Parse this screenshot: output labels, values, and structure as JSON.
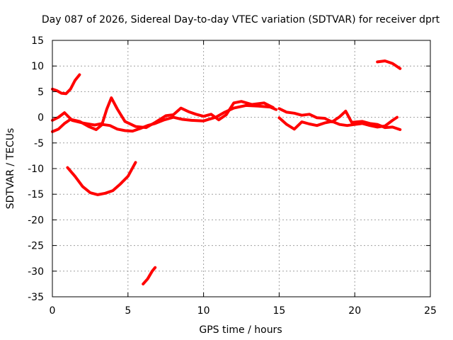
{
  "chart_data": {
    "type": "line",
    "title": "Day 087 of 2026, Sidereal Day-to-day VTEC variation (SDTVAR) for receiver dprt",
    "xlabel": "GPS time / hours",
    "ylabel": "SDTVAR / TECUs",
    "xlim": [
      0,
      25
    ],
    "ylim": [
      -35,
      15
    ],
    "xticks": [
      0,
      5,
      10,
      15,
      20,
      25
    ],
    "yticks": [
      15,
      10,
      5,
      0,
      -5,
      -10,
      -15,
      -20,
      -25,
      -30,
      -35
    ],
    "grid": true,
    "legend": "none",
    "color": "#ff0000",
    "series": [
      {
        "name": "arc-upper-left",
        "points": [
          [
            0,
            5.5
          ],
          [
            0.3,
            5.2
          ],
          [
            0.6,
            4.7
          ],
          [
            0.9,
            4.6
          ],
          [
            1.2,
            5.5
          ],
          [
            1.5,
            7.2
          ],
          [
            1.8,
            8.3
          ]
        ]
      },
      {
        "name": "arc-u-shape",
        "points": [
          [
            1,
            -9.8
          ],
          [
            1.5,
            -11.5
          ],
          [
            2,
            -13.5
          ],
          [
            2.5,
            -14.7
          ],
          [
            3,
            -15.1
          ],
          [
            3.5,
            -14.8
          ],
          [
            4,
            -14.3
          ],
          [
            4.5,
            -13
          ],
          [
            5,
            -11.5
          ],
          [
            5.5,
            -8.8
          ]
        ]
      },
      {
        "name": "arc-low-short",
        "points": [
          [
            6,
            -32.5
          ],
          [
            6.3,
            -31.5
          ],
          [
            6.6,
            -30
          ],
          [
            6.8,
            -29.3
          ]
        ]
      },
      {
        "name": "arc-high-right",
        "points": [
          [
            21.5,
            10.8
          ],
          [
            22,
            11
          ],
          [
            22.5,
            10.5
          ],
          [
            23,
            9.5
          ]
        ]
      },
      {
        "name": "arc-zero-1",
        "points": [
          [
            0,
            -2.8
          ],
          [
            0.4,
            -2.3
          ],
          [
            0.8,
            -1.2
          ],
          [
            1.2,
            -0.4
          ],
          [
            1.8,
            -0.8
          ],
          [
            2.4,
            -1.8
          ],
          [
            2.9,
            -2.4
          ],
          [
            3.3,
            -1.4
          ],
          [
            3.8,
            -1.6
          ],
          [
            4.3,
            -2.3
          ],
          [
            4.8,
            -2.6
          ],
          [
            5.3,
            -2.7
          ],
          [
            5.8,
            -2.2
          ],
          [
            6.3,
            -1.6
          ],
          [
            6.8,
            -1.2
          ],
          [
            7.4,
            -0.5
          ],
          [
            8,
            0
          ],
          [
            8.6,
            -0.4
          ],
          [
            9.2,
            -0.6
          ],
          [
            10,
            -0.7
          ],
          [
            10.8,
            0
          ],
          [
            11.4,
            1
          ],
          [
            12,
            1.8
          ],
          [
            12.8,
            2.3
          ],
          [
            13.6,
            2.2
          ],
          [
            14.4,
            2
          ],
          [
            14.8,
            1.5
          ]
        ]
      },
      {
        "name": "arc-zero-2",
        "points": [
          [
            0,
            -0.6
          ],
          [
            0.4,
            0
          ],
          [
            0.8,
            0.9
          ],
          [
            1.3,
            -0.6
          ],
          [
            2,
            -1.1
          ],
          [
            2.8,
            -1.5
          ],
          [
            3.3,
            -1.2
          ],
          [
            3.6,
            1.6
          ],
          [
            3.9,
            3.8
          ],
          [
            4.3,
            1.6
          ],
          [
            4.8,
            -0.8
          ],
          [
            5.5,
            -1.8
          ],
          [
            6.2,
            -2
          ],
          [
            6.8,
            -1
          ],
          [
            7.5,
            0.3
          ],
          [
            8,
            0.5
          ],
          [
            8.5,
            1.8
          ],
          [
            9,
            1.1
          ],
          [
            9.5,
            0.6
          ],
          [
            10,
            0.2
          ],
          [
            10.5,
            0.6
          ],
          [
            11,
            -0.5
          ],
          [
            11.5,
            0.5
          ],
          [
            12,
            2.8
          ],
          [
            12.5,
            3.1
          ],
          [
            13.2,
            2.5
          ],
          [
            14,
            2.8
          ],
          [
            14.6,
            1.9
          ]
        ]
      },
      {
        "name": "arc-zero-3",
        "points": [
          [
            15,
            1.7
          ],
          [
            15.5,
            1
          ],
          [
            16,
            0.8
          ],
          [
            16.5,
            0.4
          ],
          [
            17,
            0.6
          ],
          [
            17.5,
            -0.1
          ],
          [
            18,
            -0.2
          ],
          [
            18.5,
            -0.9
          ],
          [
            19,
            0.1
          ],
          [
            19.4,
            1.2
          ],
          [
            19.8,
            -1
          ],
          [
            20.5,
            -0.8
          ],
          [
            21,
            -1.2
          ],
          [
            21.5,
            -1.4
          ],
          [
            22,
            -2
          ],
          [
            22.5,
            -1.9
          ],
          [
            23,
            -2.4
          ]
        ]
      },
      {
        "name": "arc-zero-4",
        "points": [
          [
            15,
            -0.1
          ],
          [
            15.5,
            -1.4
          ],
          [
            16,
            -2.3
          ],
          [
            16.5,
            -0.9
          ],
          [
            17,
            -1.3
          ],
          [
            17.5,
            -1.6
          ],
          [
            18,
            -1.1
          ],
          [
            18.5,
            -0.8
          ],
          [
            19,
            -1.4
          ],
          [
            19.5,
            -1.6
          ],
          [
            20,
            -1.4
          ],
          [
            20.5,
            -1.2
          ],
          [
            21,
            -1.6
          ],
          [
            21.5,
            -1.9
          ],
          [
            22,
            -1.7
          ],
          [
            22.5,
            -0.6
          ],
          [
            22.8,
            0
          ]
        ]
      }
    ]
  }
}
